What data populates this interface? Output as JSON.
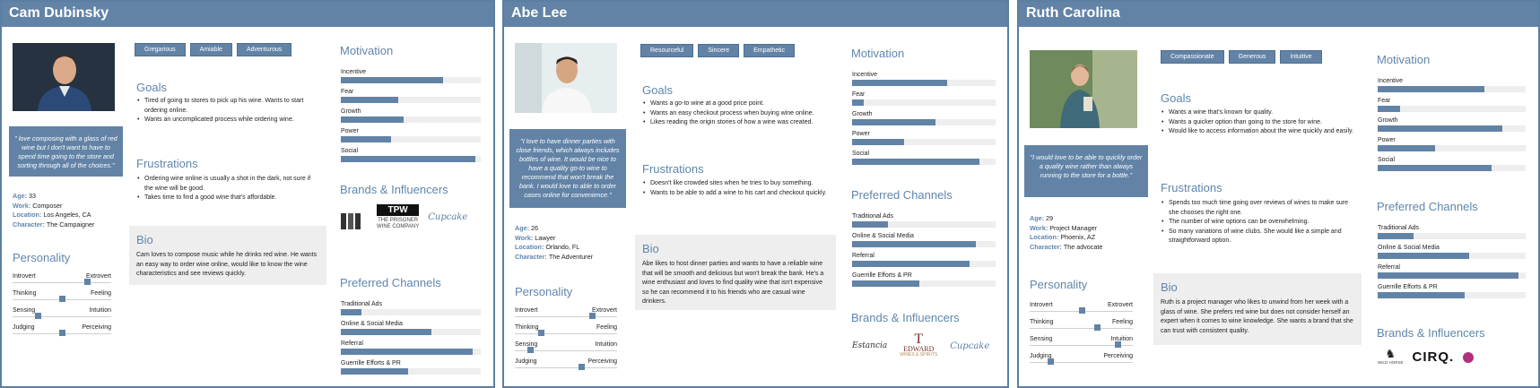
{
  "colors": {
    "accent": "#6283a6",
    "heading": "#5f86ad",
    "track": "#eeeeee"
  },
  "section_titles": {
    "goals": "Goals",
    "frustrations": "Frustrations",
    "bio": "Bio",
    "personality": "Personality",
    "motivation": "Motivation",
    "brands": "Brands & Influencers",
    "channels": "Preferred Channels"
  },
  "info_keys": {
    "age": "Age:",
    "work": "Work:",
    "location": "Location:",
    "character": "Character:"
  },
  "motivation_labels": [
    "Incentive",
    "Fear",
    "Growth",
    "Power",
    "Social"
  ],
  "channel_labels": [
    "Traditional Ads",
    "Online & Social Media",
    "Referral",
    "Guerrille Efforts & PR"
  ],
  "trait_labels": [
    [
      "Introvert",
      "Extrovert"
    ],
    [
      "Thinking",
      "Feeling"
    ],
    [
      "Sensing",
      "Intuition"
    ],
    [
      "Judging",
      "Perceiving"
    ]
  ],
  "personas": [
    {
      "name": "Cam Dubinsky",
      "photo_icon": "portrait-photo",
      "quote": "\" love composing with a glass of red wine but I don't want to have to spend time going to the store and sorting through all of the choices.\"",
      "age": "33",
      "work": "Composer",
      "location": "Los Angeles, CA",
      "character": "The Campaigner",
      "tags": [
        "Gregarious",
        "Amiable",
        "Adventurous"
      ],
      "goals": [
        "Tired of going to stores to pick up his wine. Wants to start ordering online.",
        "Wants an uncomplicated process while ordering wine."
      ],
      "frustrations": [
        "Ordering wine online is usually a shot in the dark, not sure if the wine will be good.",
        "Takes time to find a good wine that's affordable."
      ],
      "bio": "Cam loves to compose music while he drinks red wine. He wants an easy way to order wine online, would like to know the wine characteristics and see reviews quickly.",
      "personality": [
        0.75,
        0.5,
        0.25,
        0.5
      ],
      "motivation": [
        0.73,
        0.41,
        0.45,
        0.36,
        0.96
      ],
      "channels": [
        0.15,
        0.65,
        0.94,
        0.48
      ],
      "brands": [
        "The Prisoner Wine Company",
        "Cupcake"
      ],
      "brand_tpw": "TPW",
      "brand_prisoner_line1": "THE PRISONER",
      "brand_prisoner_line2": "WINE COMPANY",
      "brand_cupcake": "Cupcake"
    },
    {
      "name": "Abe Lee",
      "photo_icon": "portrait-photo",
      "quote": "\"I love to have dinner parties with close friends, which always includes bottles of wine. It would be nice to have a quality go-to wine to recommend that won't break the bank. I would love to able to order cases online for convenience.\"",
      "age": "26",
      "work": "Lawyer",
      "location": "Orlando, FL",
      "character": "The Adventurer",
      "tags": [
        "Resourceful",
        "Sincere",
        "Empathetic"
      ],
      "goals": [
        "Wants a go-to wine at a good price point.",
        "Wants an easy checkout process when buying wine online.",
        "Likes reading the origin stories of how a wine was created."
      ],
      "frustrations": [
        "Doesn't like crowded sites when he tries to buy something.",
        "Wants to be able to add a wine to his cart and checkout quickly."
      ],
      "bio": "Abe likes to host dinner parties and wants to have a reliable wine that will be smooth and delicious but won't break the bank. He's a wine enthusiast and loves to find quality wine that isn't expensive so he can recommend it to his friends who are casual wine drinkers.",
      "personality": [
        0.75,
        0.25,
        0.15,
        0.65
      ],
      "motivation": [
        0.66,
        0.08,
        0.58,
        0.36,
        0.89
      ],
      "channels": [
        0.25,
        0.86,
        0.82,
        0.47
      ],
      "brands": [
        "Estancia",
        "Edward",
        "Cupcake"
      ],
      "brand_estancia": "Estancia",
      "brand_edward_mark": "T",
      "brand_edward": "EDWARD",
      "brand_edward_sub": "WINES & SPIRITS",
      "brand_cupcake": "Cupcake"
    },
    {
      "name": "Ruth Carolina",
      "photo_icon": "portrait-photo",
      "quote": "\"I would love to be able to quickly order a quality wine rather than always running to the store for a bottle.\"",
      "age": "29",
      "work": "Project Manager",
      "location": "Phoenix, AZ",
      "character": "The advocate",
      "tags": [
        "Compassionate",
        "Generous",
        "Intuitive"
      ],
      "goals": [
        "Wants a wine that's known for quality.",
        "Wants a quicker option than going to the store for wine.",
        "Would like to access information about the wine quickly and easily."
      ],
      "frustrations": [
        "Spends too much time going over reviews of wines to make sure she chooses the right one.",
        "The number of wine options can be overwhelming.",
        "So many variations of wine clubs. She would like a simple and straightforward option."
      ],
      "bio": "Ruth is a project manager who likes to unwind from her week with a glass of wine. She prefers red wine but does not consider herself an expert when it comes to wine knowledge. She wants a brand that she can trust with consistent quality.",
      "personality": [
        0.5,
        0.65,
        0.85,
        0.2
      ],
      "motivation": [
        0.72,
        0.15,
        0.84,
        0.39,
        0.77
      ],
      "channels": [
        0.24,
        0.62,
        0.95,
        0.59
      ],
      "brands": [
        "Wild Horse",
        "CIRQ",
        "Wine glass"
      ],
      "brand_wildhorse": "WILD HORSE",
      "brand_cirq": "CIRQ."
    }
  ]
}
